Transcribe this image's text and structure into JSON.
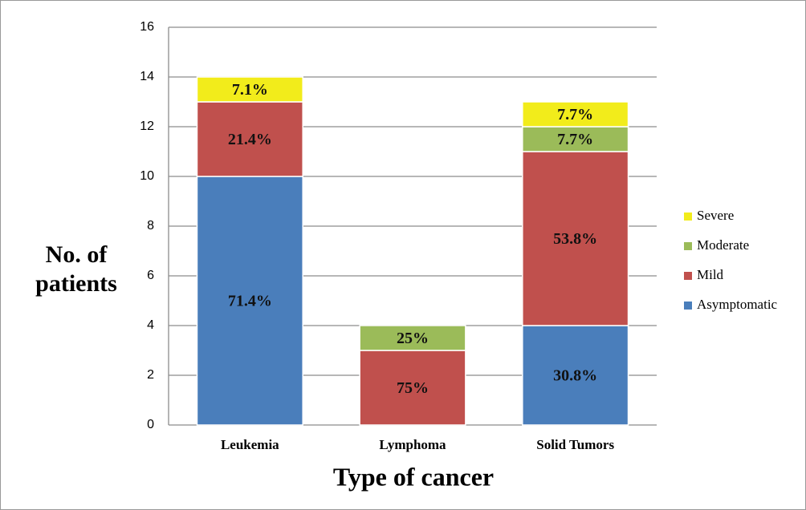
{
  "chart_data": {
    "type": "stacked_bar",
    "x_label": "Type of cancer",
    "y_label": "No. of patients",
    "categories": [
      "Leukemia",
      "Lymphoma",
      "Solid Tumors"
    ],
    "series": [
      {
        "name": "Asymptomatic",
        "color": "#4a7ebb",
        "values": [
          10,
          0,
          4
        ],
        "share_labels": [
          "71.4%",
          null,
          "30.8%"
        ]
      },
      {
        "name": "Mild",
        "color": "#c0504d",
        "values": [
          3,
          3,
          7
        ],
        "share_labels": [
          "21.4%",
          "75%",
          "53.8%"
        ]
      },
      {
        "name": "Moderate",
        "color": "#9bbb59",
        "values": [
          0,
          1,
          1
        ],
        "share_labels": [
          null,
          "25%",
          "7.7%"
        ]
      },
      {
        "name": "Severe",
        "color": "#f2ec1b",
        "values": [
          1,
          0,
          1
        ],
        "share_labels": [
          "7.1%",
          null,
          "7.7%"
        ]
      }
    ],
    "ylim": [
      0,
      16
    ],
    "yticks": [
      0,
      2,
      4,
      6,
      8,
      10,
      12,
      14,
      16
    ],
    "grid": true,
    "legend": "right"
  }
}
